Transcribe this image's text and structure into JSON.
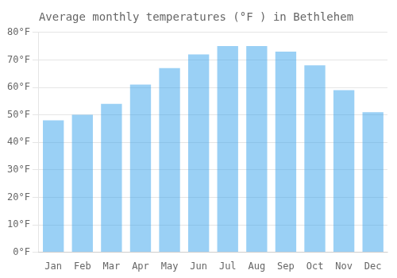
{
  "chart_data": {
    "type": "bar",
    "title": "Average monthly temperatures (°F ) in Bethlehem",
    "categories": [
      "Jan",
      "Feb",
      "Mar",
      "Apr",
      "May",
      "Jun",
      "Jul",
      "Aug",
      "Sep",
      "Oct",
      "Nov",
      "Dec"
    ],
    "values": [
      48,
      50,
      54,
      61,
      67,
      72,
      75,
      75,
      73,
      68,
      59,
      51
    ],
    "ylim": [
      0,
      80
    ],
    "yticks": [
      {
        "value": 0,
        "label": "0°F"
      },
      {
        "value": 10,
        "label": "10°F"
      },
      {
        "value": 20,
        "label": "20°F"
      },
      {
        "value": 30,
        "label": "30°F"
      },
      {
        "value": 40,
        "label": "40°F"
      },
      {
        "value": 50,
        "label": "50°F"
      },
      {
        "value": 60,
        "label": "60°F"
      },
      {
        "value": 70,
        "label": "70°F"
      },
      {
        "value": 80,
        "label": "80°F"
      }
    ],
    "grid": true
  }
}
